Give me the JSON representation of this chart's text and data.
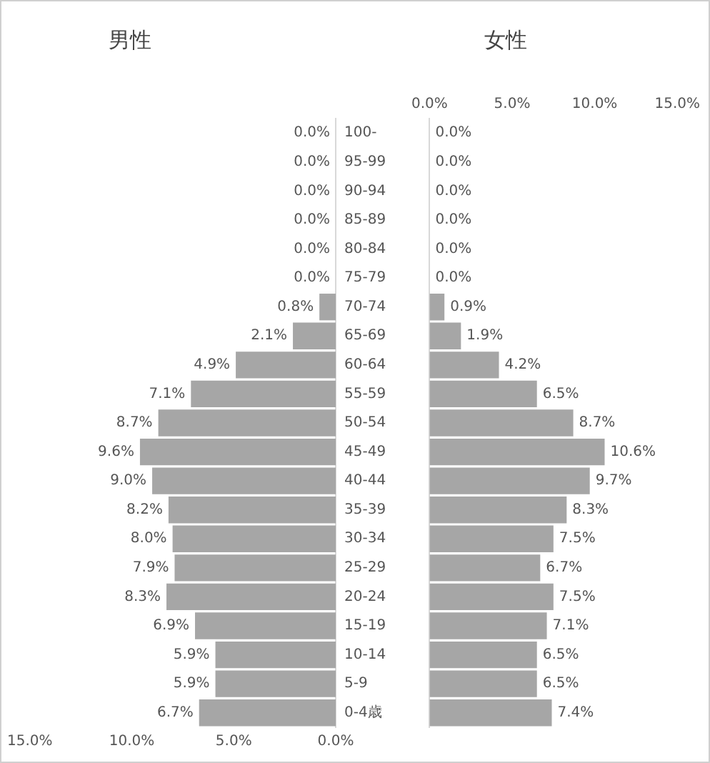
{
  "chart_data": [
    {
      "type": "bar",
      "title": "男性",
      "orientation": "horizontal",
      "categories": [
        "100-",
        "95-99",
        "90-94",
        "85-89",
        "80-84",
        "75-79",
        "70-74",
        "65-69",
        "60-64",
        "55-59",
        "50-54",
        "45-49",
        "40-44",
        "35-39",
        "30-34",
        "25-29",
        "20-24",
        "15-19",
        "10-14",
        "5-9",
        "0-4歳"
      ],
      "series": [
        {
          "color": "#a6a6a6",
          "values": [
            0,
            0,
            0,
            0,
            0,
            0,
            0.8,
            2.1,
            4.9,
            7.1,
            8.7,
            9.6,
            9.0,
            8.2,
            8.0,
            7.9,
            8.3,
            6.9,
            5.9,
            5.9,
            6.7
          ],
          "value_labels": [
            "0.0%",
            "0.0%",
            "0.0%",
            "0.0%",
            "0.0%",
            "0.0%",
            "0.8%",
            "2.1%",
            "4.9%",
            "7.1%",
            "8.7%",
            "9.6%",
            "9.0%",
            "8.2%",
            "8.0%",
            "7.9%",
            "8.3%",
            "6.9%",
            "5.9%",
            "5.9%",
            "6.7%"
          ]
        }
      ],
      "xlim": [
        15,
        0
      ],
      "xticks": [
        {
          "value": 15,
          "label": "15.0%"
        },
        {
          "value": 10,
          "label": "10.0%"
        },
        {
          "value": 5,
          "label": "5.0%"
        },
        {
          "value": 0,
          "label": "0.0%"
        }
      ],
      "grid": false,
      "legend": false
    },
    {
      "type": "bar",
      "title": "女性",
      "orientation": "horizontal",
      "categories": [
        null,
        null,
        null,
        null,
        null,
        null,
        null,
        null,
        null,
        null,
        null,
        null,
        null,
        null,
        null,
        null,
        null,
        null,
        null,
        null,
        null
      ],
      "series": [
        {
          "color": "#a6a6a6",
          "values": [
            0,
            0,
            0,
            0,
            0,
            0,
            0.9,
            1.9,
            4.2,
            6.5,
            8.7,
            10.6,
            9.7,
            8.3,
            7.5,
            6.7,
            7.5,
            7.1,
            6.5,
            6.5,
            7.4
          ],
          "value_labels": [
            "0.0%",
            "0.0%",
            "0.0%",
            "0.0%",
            "0.0%",
            "0.0%",
            "0.9%",
            "1.9%",
            "4.2%",
            "6.5%",
            "8.7%",
            "10.6%",
            "9.7%",
            "8.3%",
            "7.5%",
            "6.7%",
            "7.5%",
            "7.1%",
            "6.5%",
            "6.5%",
            "7.4%"
          ]
        }
      ],
      "x2lim": [
        0,
        15
      ],
      "x2ticks": [
        {
          "value": 0,
          "label": "0.0%"
        },
        {
          "value": 5,
          "label": "5.0%"
        },
        {
          "value": 10,
          "label": "10.0%"
        },
        {
          "value": 15,
          "label": "15.0%"
        }
      ],
      "tick_labels": "x",
      "grid": false,
      "legend": false
    }
  ]
}
